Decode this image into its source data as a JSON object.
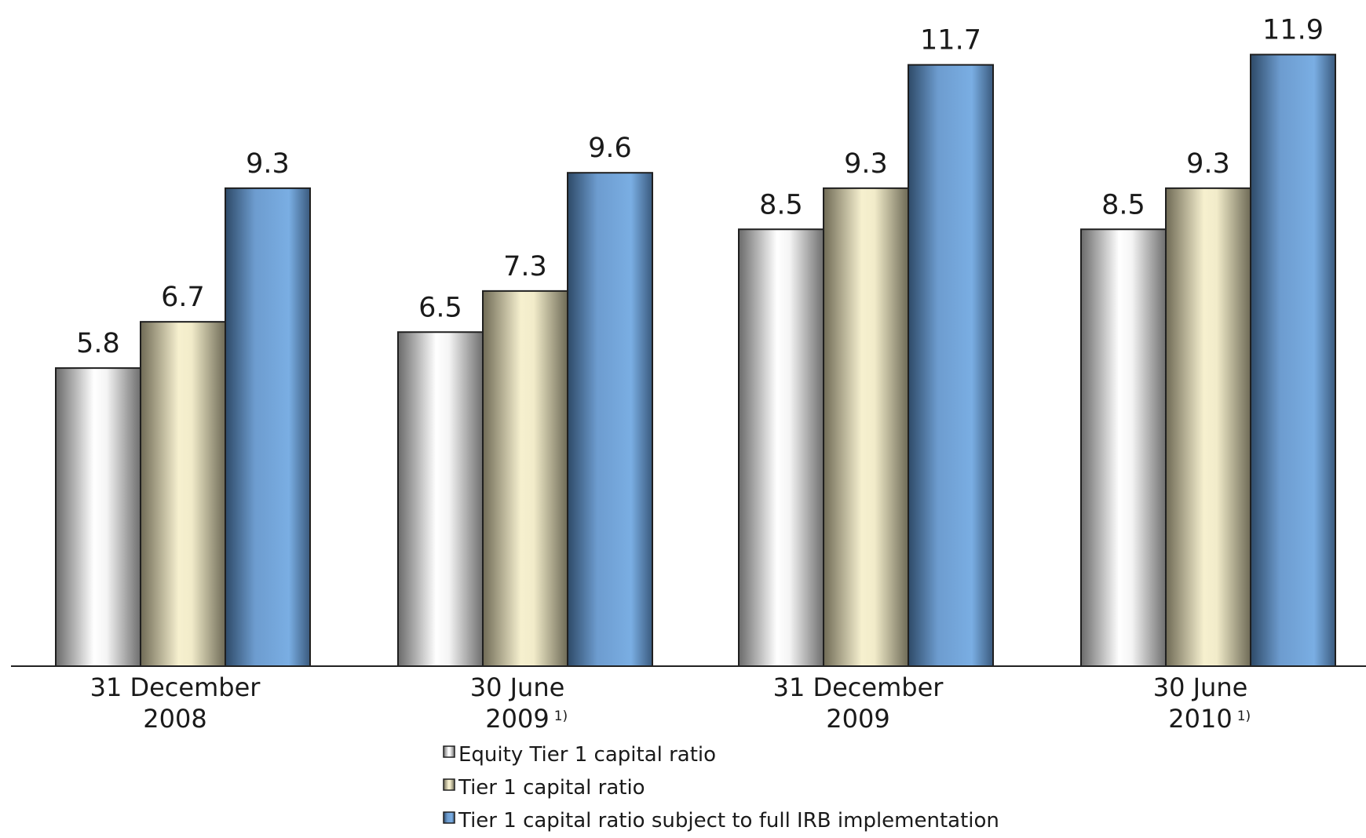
{
  "chart_data": {
    "type": "bar",
    "title": "",
    "xlabel": "",
    "ylabel": "",
    "ylim": [
      0,
      12.5
    ],
    "grid": false,
    "legend_position": "bottom",
    "categories": [
      {
        "line1": "31 December",
        "line2": "2008",
        "note": ""
      },
      {
        "line1": "30 June",
        "line2": "2009",
        "note": "1)"
      },
      {
        "line1": "31 December",
        "line2": "2009",
        "note": ""
      },
      {
        "line1": "30 June",
        "line2": "2010",
        "note": "1)"
      }
    ],
    "series": [
      {
        "name": "Equity Tier 1 capital ratio",
        "values": [
          5.8,
          6.5,
          8.5,
          8.5
        ],
        "color": "#d0d0d0"
      },
      {
        "name": "Tier 1 capital ratio",
        "values": [
          6.7,
          7.3,
          9.3,
          9.3
        ],
        "color": "#e3dcb5"
      },
      {
        "name": "Tier 1 capital ratio subject to full IRB implementation",
        "values": [
          9.3,
          9.6,
          11.7,
          11.9
        ],
        "color": "#5a8fc8"
      }
    ]
  }
}
